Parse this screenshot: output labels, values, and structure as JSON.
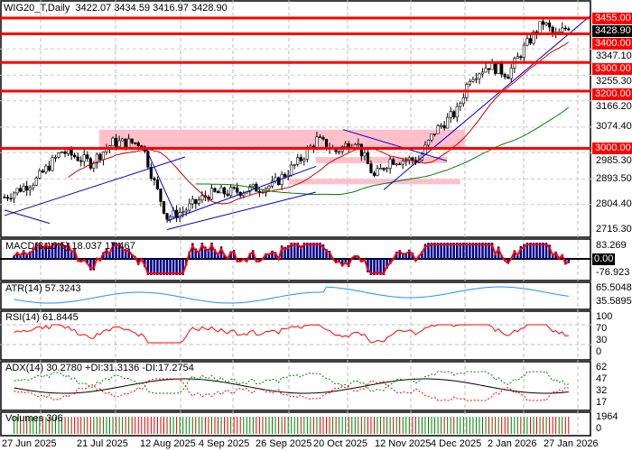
{
  "header": {
    "symbol": "WIG20_T,Daily",
    "open": "3422.07",
    "high": "3434.59",
    "low": "3416.97",
    "close": "3428.90"
  },
  "price_axis": {
    "ticks": [
      "3347.10",
      "3255.30",
      "3166.20",
      "3074.40",
      "2985.30",
      "2893.50",
      "2804.40",
      "2715.30"
    ],
    "current": "3428.90"
  },
  "levels": [
    {
      "label": "3455.00",
      "value": 3455
    },
    {
      "label": "3400.00",
      "value": 3400
    },
    {
      "label": "3300.00",
      "value": 3300
    },
    {
      "label": "3200.00",
      "value": 3200
    },
    {
      "label": "3000.00",
      "value": 3000
    }
  ],
  "indicators": {
    "macd": {
      "label": "MACD(3,10,5) 18.037 17.467",
      "ticks": [
        "83.269",
        "0.00",
        "-76.923"
      ]
    },
    "atr": {
      "label": "ATR(14) 57.3243",
      "ticks": [
        "65.5048",
        "35.5895"
      ]
    },
    "rsi": {
      "label": "RSI(14) 61.8445",
      "ticks": [
        "100",
        "70",
        "30",
        "0"
      ]
    },
    "adx": {
      "label": "ADX(14) 30.2780 +DI:31.3136 -DI:17.2754",
      "ticks": [
        "62",
        "47",
        "32",
        "17"
      ]
    },
    "volume": {
      "label": "Volumes 306",
      "ticks": [
        "1964",
        "0"
      ]
    }
  },
  "dates": [
    "27 Jun 2025",
    "21 Jul 2025",
    "12 Aug 2025",
    "4 Sep 2025",
    "26 Sep 2025",
    "20 Oct 2025",
    "12 Nov 2025",
    "4 Dec 2025",
    "2 Jan 2026",
    "27 Jan 2026"
  ],
  "colors": {
    "level": "#ff0000",
    "ma_fast": "#cc0000",
    "ma_slow": "#008000",
    "trend": "#0000cc",
    "zone": "#ffc0cb",
    "atr": "#1e90ff"
  },
  "chart_data": {
    "type": "candlestick",
    "price_path": [
      [
        0,
        2830
      ],
      [
        10,
        2890
      ],
      [
        18,
        2990
      ],
      [
        27,
        2950
      ],
      [
        34,
        3020
      ],
      [
        43,
        3020
      ],
      [
        47,
        2880
      ],
      [
        51,
        2760
      ],
      [
        56,
        2780
      ],
      [
        64,
        2840
      ],
      [
        73,
        2850
      ],
      [
        84,
        2870
      ],
      [
        92,
        2950
      ],
      [
        98,
        3030
      ],
      [
        104,
        2990
      ],
      [
        110,
        3030
      ],
      [
        116,
        2900
      ],
      [
        121,
        2960
      ],
      [
        130,
        2960
      ],
      [
        135,
        3060
      ],
      [
        142,
        3130
      ],
      [
        146,
        3250
      ],
      [
        152,
        3290
      ],
      [
        158,
        3260
      ],
      [
        163,
        3350
      ],
      [
        169,
        3440
      ],
      [
        173,
        3390
      ],
      [
        177,
        3428
      ]
    ]
  }
}
